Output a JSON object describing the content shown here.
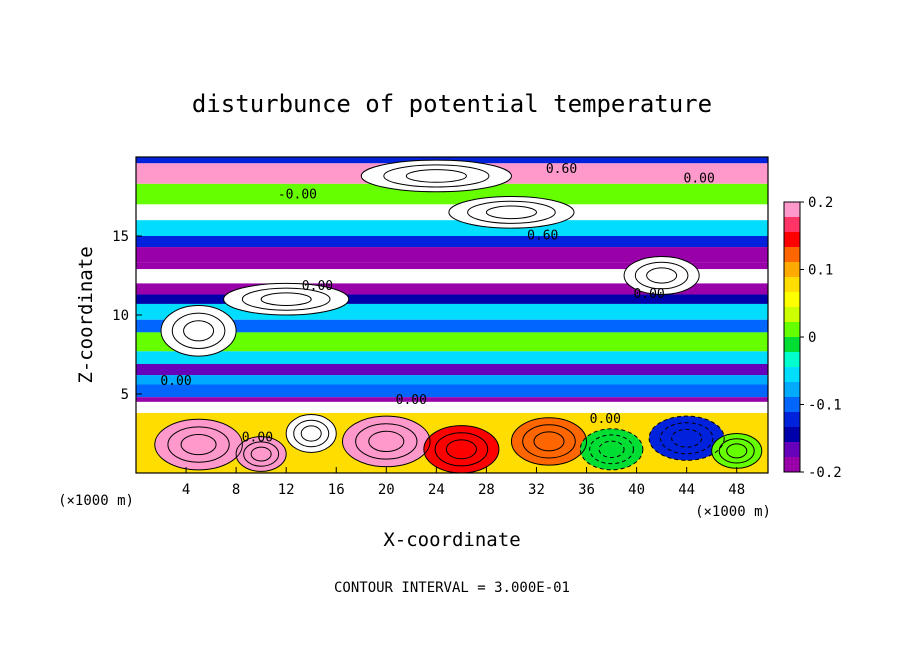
{
  "chart_data": {
    "type": "heatmap",
    "title": "disturbunce of potential temperature",
    "xlabel": "X-coordinate",
    "ylabel": "Z-coordinate",
    "x_unit": "(×1000 m)",
    "y_unit": "(×1000 m)",
    "xlim": [
      0,
      50.5
    ],
    "ylim": [
      0,
      20
    ],
    "x_ticks": [
      4,
      8,
      12,
      16,
      20,
      24,
      28,
      32,
      36,
      40,
      44,
      48
    ],
    "y_ticks": [
      5,
      10,
      15
    ],
    "colorbar": {
      "min": -0.2,
      "max": 0.2,
      "ticks": [
        0.2,
        0.1,
        0,
        -0.1,
        -0.2
      ],
      "colors": [
        "#ff99cc",
        "#ff3366",
        "#ff0000",
        "#ff6600",
        "#ffaa00",
        "#ffdd00",
        "#ffff00",
        "#ccff00",
        "#66ff00",
        "#00dd33",
        "#00ffcc",
        "#00ddff",
        "#00aaff",
        "#0066ff",
        "#0022dd",
        "#0000aa",
        "#6600bb",
        "#9900aa"
      ]
    },
    "bands": [
      {
        "z0": 19.6,
        "z1": 20.0,
        "value": -0.12
      },
      {
        "z0": 18.3,
        "z1": 19.6,
        "value": 0.2
      },
      {
        "z0": 17.0,
        "z1": 18.3,
        "value": 0.02
      },
      {
        "z0": 16.0,
        "z1": 17.0,
        "value": 0.25
      },
      {
        "z0": 15.0,
        "z1": 16.0,
        "value": -0.06
      },
      {
        "z0": 14.3,
        "z1": 15.0,
        "value": -0.12
      },
      {
        "z0": 13.3,
        "z1": 14.3,
        "value": -0.18
      },
      {
        "z0": 12.9,
        "z1": 13.3,
        "value": -0.21
      },
      {
        "z0": 12.0,
        "z1": 12.9,
        "value": 0.25
      },
      {
        "z0": 11.3,
        "z1": 12.0,
        "value": -0.2
      },
      {
        "z0": 10.7,
        "z1": 11.3,
        "value": -0.14
      },
      {
        "z0": 9.7,
        "z1": 10.7,
        "value": -0.06
      },
      {
        "z0": 8.9,
        "z1": 9.7,
        "value": -0.1
      },
      {
        "z0": 7.7,
        "z1": 8.9,
        "value": 0.0
      },
      {
        "z0": 6.9,
        "z1": 7.7,
        "value": -0.06
      },
      {
        "z0": 6.2,
        "z1": 6.9,
        "value": -0.16
      },
      {
        "z0": 5.6,
        "z1": 6.2,
        "value": -0.08
      },
      {
        "z0": 4.8,
        "z1": 5.6,
        "value": -0.1
      },
      {
        "z0": 4.5,
        "z1": 4.8,
        "value": -0.18
      },
      {
        "z0": 3.8,
        "z1": 4.5,
        "value": 0.25
      },
      {
        "z0": 0.0,
        "z1": 3.8,
        "value": 0.08
      }
    ],
    "blobs": [
      {
        "x": 5,
        "z": 1.8,
        "rx": 3.5,
        "rz": 1.6,
        "value": 0.22
      },
      {
        "x": 10,
        "z": 1.2,
        "rx": 2.0,
        "rz": 1.1,
        "value": 0.18
      },
      {
        "x": 14,
        "z": 2.5,
        "rx": 2.0,
        "rz": 1.2,
        "value": 0.25
      },
      {
        "x": 20,
        "z": 2.0,
        "rx": 3.5,
        "rz": 1.6,
        "value": 0.2
      },
      {
        "x": 26,
        "z": 1.5,
        "rx": 3.0,
        "rz": 1.5,
        "value": 0.15
      },
      {
        "x": 33,
        "z": 2.0,
        "rx": 3.0,
        "rz": 1.5,
        "value": 0.12
      },
      {
        "x": 38,
        "z": 1.5,
        "rx": 2.5,
        "rz": 1.3,
        "value": -0.02
      },
      {
        "x": 44,
        "z": 2.2,
        "rx": 3.0,
        "rz": 1.4,
        "value": -0.13
      },
      {
        "x": 48,
        "z": 1.4,
        "rx": 2.0,
        "rz": 1.1,
        "value": 0.0
      },
      {
        "x": 12,
        "z": 11.0,
        "rx": 5.0,
        "rz": 1.0,
        "value": 0.25
      },
      {
        "x": 5,
        "z": 9.0,
        "rx": 3.0,
        "rz": 1.6,
        "value": 0.25
      },
      {
        "x": 30,
        "z": 16.5,
        "rx": 5.0,
        "rz": 1.0,
        "value": 0.25
      },
      {
        "x": 24,
        "z": 18.8,
        "rx": 6.0,
        "rz": 1.0,
        "value": 0.25
      },
      {
        "x": 42,
        "z": 12.5,
        "rx": 3.0,
        "rz": 1.2,
        "value": 0.25
      }
    ],
    "contour_labels": [
      {
        "text": "0.60",
        "x": 34.0,
        "z": 19.2
      },
      {
        "text": "0.00",
        "x": 45.0,
        "z": 18.6
      },
      {
        "text": "-0.00",
        "x": 12.9,
        "z": 17.6
      },
      {
        "text": "0.60",
        "x": 32.5,
        "z": 15.0
      },
      {
        "text": "0.00",
        "x": 14.5,
        "z": 11.8
      },
      {
        "text": "0.00",
        "x": 41.0,
        "z": 11.3
      },
      {
        "text": "0.00",
        "x": 3.2,
        "z": 5.8
      },
      {
        "text": "0.00",
        "x": 22.0,
        "z": 4.6
      },
      {
        "text": "0.00",
        "x": 37.5,
        "z": 3.4
      },
      {
        "text": "0.00",
        "x": 9.7,
        "z": 2.2
      }
    ],
    "annotations": [
      "CONTOUR INTERVAL = 3.000E-01"
    ]
  }
}
